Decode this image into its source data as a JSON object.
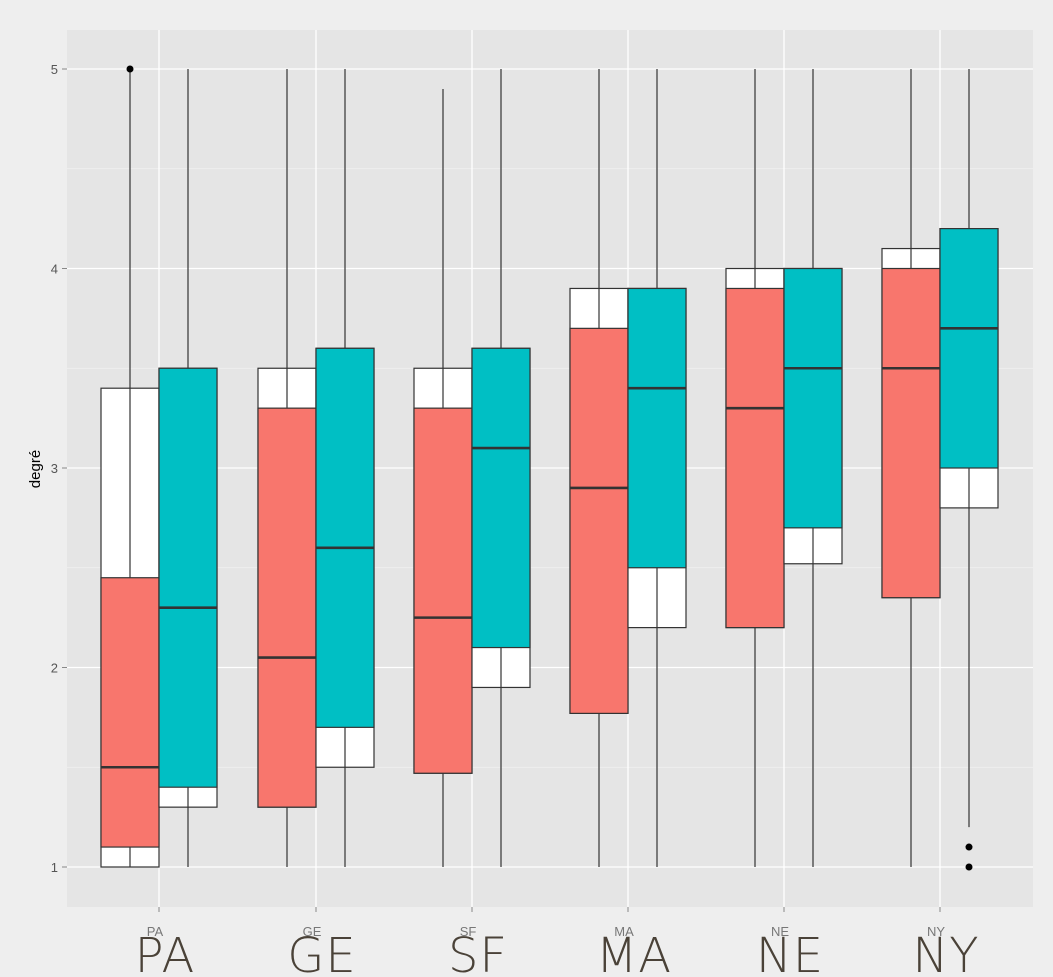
{
  "chart_data": {
    "type": "boxplot",
    "ylabel": "degré",
    "ylim": [
      0.8,
      5.2
    ],
    "yticks": [
      1,
      2,
      3,
      4,
      5
    ],
    "categories": [
      "PA",
      "GE",
      "SF",
      "MA",
      "NE",
      "NY"
    ],
    "big_labels": [
      "PA",
      "GE",
      "SF",
      "MA",
      "NE",
      "NY"
    ],
    "colors": {
      "series_a": "#F8766D",
      "series_b": "#00BFC4",
      "panel": "#E5E5E5",
      "grid": "#FFFFFF"
    },
    "boxes": [
      {
        "group": "PA",
        "series": "a",
        "lower_whisker": 1.0,
        "q1": 1.1,
        "median": 1.5,
        "q3": 2.45,
        "upper_whisker": 5.0,
        "notch_low": 1.0,
        "notch_high": 3.4,
        "outliers": []
      },
      {
        "group": "PA",
        "series": "b",
        "lower_whisker": 1.0,
        "q1": 1.4,
        "median": 2.3,
        "q3": 3.5,
        "upper_whisker": 5.0,
        "notch_low": 1.3,
        "notch_high": 3.5,
        "outliers": []
      },
      {
        "group": "GE",
        "series": "a",
        "lower_whisker": 1.0,
        "q1": 1.3,
        "median": 2.05,
        "q3": 3.3,
        "upper_whisker": 5.0,
        "notch_low": 1.3,
        "notch_high": 3.5,
        "outliers": []
      },
      {
        "group": "GE",
        "series": "b",
        "lower_whisker": 1.0,
        "q1": 1.7,
        "median": 2.6,
        "q3": 3.6,
        "upper_whisker": 5.0,
        "notch_low": 1.5,
        "notch_high": 3.6,
        "outliers": []
      },
      {
        "group": "SF",
        "series": "a",
        "lower_whisker": 1.0,
        "q1": 1.47,
        "median": 2.25,
        "q3": 3.3,
        "upper_whisker": 4.9,
        "notch_low": 1.47,
        "notch_high": 3.5,
        "outliers": []
      },
      {
        "group": "SF",
        "series": "b",
        "lower_whisker": 1.0,
        "q1": 2.1,
        "median": 3.1,
        "q3": 3.6,
        "upper_whisker": 5.0,
        "notch_low": 1.9,
        "notch_high": 3.6,
        "outliers": []
      },
      {
        "group": "MA",
        "series": "a",
        "lower_whisker": 1.0,
        "q1": 1.77,
        "median": 2.9,
        "q3": 3.7,
        "upper_whisker": 5.0,
        "notch_low": 1.77,
        "notch_high": 3.9,
        "outliers": []
      },
      {
        "group": "MA",
        "series": "b",
        "lower_whisker": 1.0,
        "q1": 2.5,
        "median": 3.4,
        "q3": 3.9,
        "upper_whisker": 5.0,
        "notch_low": 2.2,
        "notch_high": 3.9,
        "outliers": []
      },
      {
        "group": "NE",
        "series": "a",
        "lower_whisker": 1.0,
        "q1": 2.2,
        "median": 3.3,
        "q3": 3.9,
        "upper_whisker": 5.0,
        "notch_low": 2.2,
        "notch_high": 4.0,
        "outliers": []
      },
      {
        "group": "NE",
        "series": "b",
        "lower_whisker": 1.0,
        "q1": 2.7,
        "median": 3.5,
        "q3": 4.0,
        "upper_whisker": 5.0,
        "notch_low": 2.52,
        "notch_high": 4.0,
        "outliers": []
      },
      {
        "group": "NY",
        "series": "a",
        "lower_whisker": 1.0,
        "q1": 2.35,
        "median": 3.5,
        "q3": 4.0,
        "upper_whisker": 5.0,
        "notch_low": 2.35,
        "notch_high": 4.1,
        "outliers": []
      },
      {
        "group": "NY",
        "series": "b",
        "lower_whisker": 1.2,
        "q1": 3.0,
        "median": 3.7,
        "q3": 4.2,
        "upper_whisker": 5.0,
        "notch_low": 2.8,
        "notch_high": 4.2,
        "outliers": []
      }
    ],
    "outliers": [
      {
        "group": "PA",
        "series": "a",
        "y": 5.0
      },
      {
        "group": "NY",
        "series": "b",
        "y": 1.1
      },
      {
        "group": "NY",
        "series": "b",
        "y": 1.0
      }
    ]
  }
}
